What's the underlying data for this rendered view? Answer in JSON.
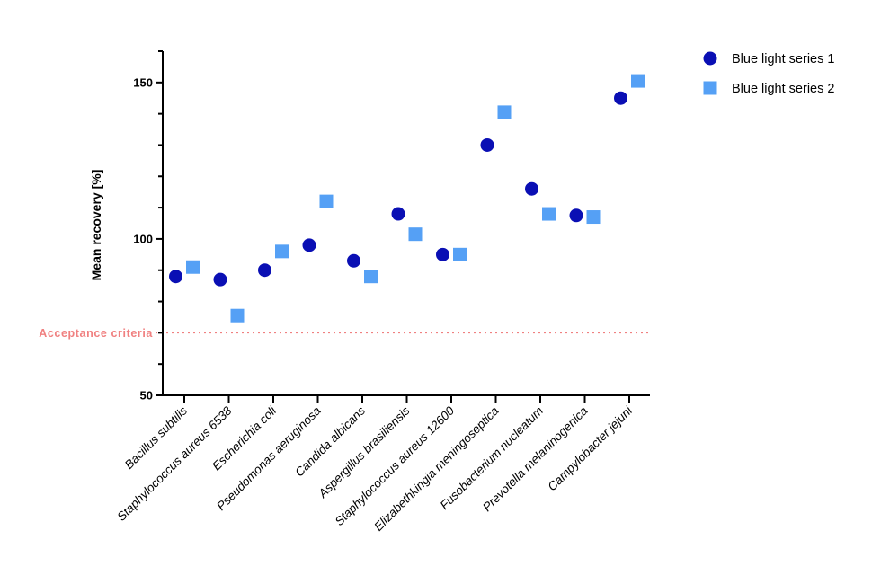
{
  "chart_data": {
    "type": "scatter",
    "title": "",
    "xlabel": "",
    "ylabel": "Mean recovery  [%]",
    "ylim": [
      50,
      160
    ],
    "yticks_labeled": [
      50,
      100,
      150
    ],
    "yticks_minor": [
      60,
      70,
      80,
      90,
      110,
      120,
      130,
      140,
      160
    ],
    "categories": [
      "Bacillus subtilis",
      "Staphylococcus aureus 6538",
      "Escherichia coli",
      "Pseudomonas aeruginosa",
      "Candida albicans",
      "Aspergillus brasiliensis",
      "Staphylococcus aureus 12600",
      "Elizabethkingia meningoseptica",
      "Fusobacterium nucleatum",
      "Prevotella melaninogenica",
      "Campylobacter jejuni"
    ],
    "series": [
      {
        "name": "Blue light series 1",
        "marker": "circle",
        "color": "#0a0fb4",
        "values": [
          88,
          87,
          90,
          98,
          93,
          108,
          95,
          130,
          116,
          107.5,
          145
        ]
      },
      {
        "name": "Blue light series 2",
        "marker": "square",
        "color": "#55a0f5",
        "values": [
          91,
          75.5,
          96,
          112,
          88,
          101.5,
          95,
          140.5,
          108,
          107,
          150.5
        ]
      }
    ],
    "reference_line": {
      "label": "Acceptance criteria",
      "value": 70,
      "color": "#f08080",
      "style": "dotted"
    },
    "legend_position": "top-right",
    "grid": false
  }
}
